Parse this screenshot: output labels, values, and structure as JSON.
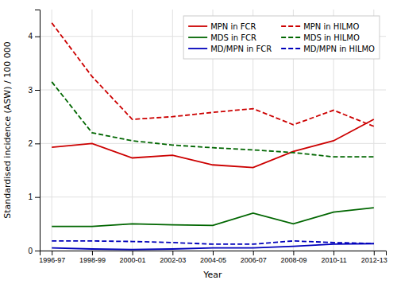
{
  "chart_data": {
    "type": "line",
    "categories": [
      "1996-97",
      "1998-99",
      "2000-01",
      "2002-03",
      "2004-05",
      "2006-07",
      "2008-09",
      "2010-11",
      "2012-13"
    ],
    "series": [
      {
        "name": "MPN in FCR",
        "color": "#cc0000",
        "line_style": "solid",
        "values": [
          1.93,
          2.0,
          1.73,
          1.78,
          1.6,
          1.55,
          1.85,
          2.05,
          2.45
        ]
      },
      {
        "name": "MDS in FCR",
        "color": "#006600",
        "line_style": "solid",
        "values": [
          0.45,
          0.45,
          0.5,
          0.48,
          0.47,
          0.7,
          0.5,
          0.72,
          0.8
        ]
      },
      {
        "name": "MD/MPN in FCR",
        "color": "#0000bb",
        "line_style": "solid",
        "values": [
          0.05,
          0.03,
          0.02,
          0.03,
          0.05,
          0.05,
          0.08,
          0.12,
          0.13
        ]
      },
      {
        "name": "MPN in HILMO",
        "color": "#cc0000",
        "line_style": "dashed",
        "values": [
          4.25,
          3.25,
          2.45,
          2.5,
          2.58,
          2.65,
          2.35,
          2.62,
          2.32
        ]
      },
      {
        "name": "MDS in HILMO",
        "color": "#006600",
        "line_style": "dashed",
        "values": [
          3.15,
          2.2,
          2.05,
          1.97,
          1.92,
          1.88,
          1.83,
          1.75,
          1.75
        ]
      },
      {
        "name": "MD/MPN in HILMO",
        "color": "#0000bb",
        "line_style": "dashed",
        "values": [
          0.18,
          0.18,
          0.17,
          0.15,
          0.12,
          0.12,
          0.18,
          0.15,
          0.13
        ]
      }
    ],
    "xlabel": "Year",
    "ylabel": "Standardised incidence (ASW) / 100 000",
    "ylim": [
      0,
      4.5
    ],
    "yticks": [
      0,
      1,
      2,
      3,
      4
    ],
    "grid": true,
    "legend": "upper right"
  }
}
